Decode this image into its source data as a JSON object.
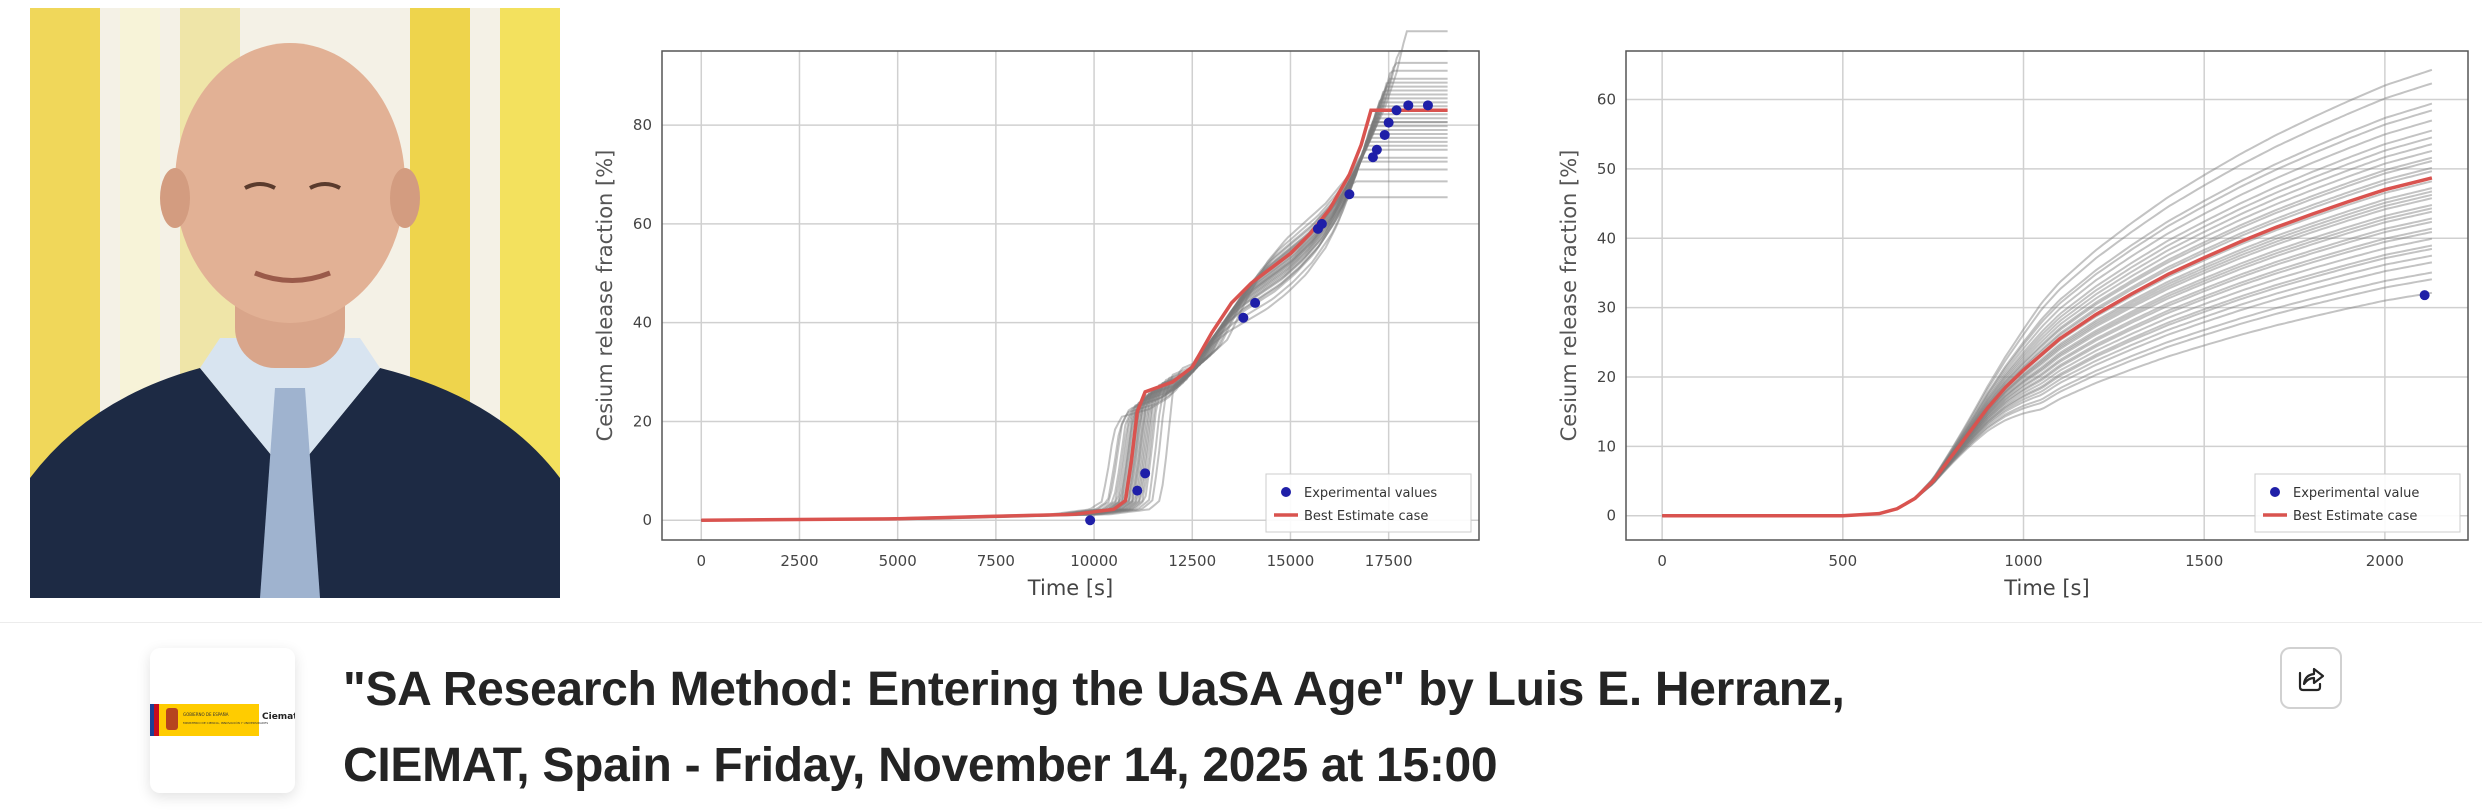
{
  "event": {
    "title_line1": "\"SA Research Method: Entering the UaSA Age\" by Luis E. Herranz,",
    "title_line2": "CIEMAT, Spain - Friday, November 14, 2025 at 15:00",
    "logo_text": "Ciemat",
    "logo_gov_text": "GOBIERNO DE ESPAÑA",
    "logo_ministry_text": "MINISTERIO DE CIENCIA, INNOVACIÓN Y UNIVERSIDADES",
    "share_icon": "share-icon"
  },
  "colors": {
    "best": "#d9534f",
    "exp": "#1f1fa8",
    "ensemble": "#7a7a7a",
    "flag_yellow": "#ffcc00",
    "flag_red": "#c60b1e"
  },
  "chart_data": [
    {
      "type": "line",
      "xlabel": "Time [s]",
      "ylabel": "Cesium release fraction [%]",
      "xlim": [
        -1000,
        19800
      ],
      "ylim": [
        -4,
        95
      ],
      "xticks": [
        0,
        2500,
        5000,
        7500,
        10000,
        12500,
        15000,
        17500
      ],
      "yticks": [
        0,
        20,
        40,
        60,
        80
      ],
      "grid": true,
      "legend_position": "bottom-right",
      "legend": [
        "Experimental values",
        "Best Estimate case"
      ],
      "best_estimate": {
        "x": [
          0,
          5000,
          7500,
          9500,
          10500,
          10800,
          10950,
          11100,
          11300,
          12000,
          12500,
          13000,
          13500,
          14000,
          14500,
          15000,
          15500,
          16000,
          16500,
          16800,
          17050,
          19000
        ],
        "y": [
          0,
          0.3,
          0.8,
          1.2,
          2.2,
          4,
          12,
          22,
          26,
          28,
          31,
          38,
          44,
          48,
          51,
          54,
          58,
          63,
          70,
          76,
          83,
          83
        ]
      },
      "experimental": {
        "x": [
          9900,
          11100,
          11300,
          13800,
          14100,
          15700,
          15800,
          16500,
          17100,
          17200,
          17400,
          17500,
          17700,
          18000,
          18500
        ],
        "y": [
          0,
          6,
          9.5,
          41,
          44,
          59,
          60,
          66,
          73.5,
          75,
          78,
          80.5,
          83,
          84,
          84
        ]
      },
      "ensemble_scales": [
        0.78,
        0.82,
        0.85,
        0.87,
        0.88,
        0.9,
        0.91,
        0.92,
        0.93,
        0.94,
        0.95,
        0.96,
        0.97,
        0.97,
        0.98,
        0.99,
        1.0,
        1.01,
        1.02,
        1.03,
        1.04,
        1.05,
        1.06,
        1.07,
        1.08,
        1.1,
        1.12,
        1.15,
        1.2
      ],
      "ensemble_shifts": [
        600,
        450,
        400,
        300,
        250,
        200,
        150,
        120,
        100,
        60,
        30,
        0,
        -20,
        -50,
        -80,
        -100,
        -140,
        -180,
        -200,
        -240,
        -280,
        -320,
        -360,
        -400,
        -450,
        -500,
        -600,
        -700,
        -900
      ]
    },
    {
      "type": "line",
      "xlabel": "Time [s]",
      "ylabel": "Cesium release fraction [%]",
      "xlim": [
        -100,
        2230
      ],
      "ylim": [
        -3.5,
        67
      ],
      "xticks": [
        0,
        500,
        1000,
        1500,
        2000
      ],
      "yticks": [
        0,
        10,
        20,
        30,
        40,
        50,
        60
      ],
      "grid": true,
      "legend_position": "bottom-right",
      "legend": [
        "Experimental value",
        "Best Estimate case"
      ],
      "best_estimate": {
        "x": [
          0,
          500,
          600,
          650,
          700,
          750,
          800,
          850,
          900,
          950,
          1000,
          1100,
          1200,
          1300,
          1400,
          1500,
          1600,
          1700,
          1800,
          1900,
          2000,
          2130
        ],
        "y": [
          0,
          0,
          0.3,
          1,
          2.5,
          5,
          8.5,
          12,
          15.5,
          18.5,
          21,
          25.5,
          29,
          32,
          34.8,
          37.2,
          39.5,
          41.6,
          43.5,
          45.3,
          47,
          48.7
        ]
      },
      "experimental": {
        "x": [
          2110
        ],
        "y": [
          31.8
        ]
      },
      "ensemble_scales": [
        0.66,
        0.7,
        0.72,
        0.75,
        0.77,
        0.79,
        0.8,
        0.82,
        0.84,
        0.85,
        0.87,
        0.88,
        0.9,
        0.91,
        0.92,
        0.94,
        0.95,
        0.96,
        0.97,
        0.99,
        1.0,
        1.02,
        1.03,
        1.05,
        1.06,
        1.08,
        1.1,
        1.12,
        1.14,
        1.17,
        1.2,
        1.22,
        1.28,
        1.32
      ],
      "ensemble_shifts": [
        0
      ]
    }
  ]
}
